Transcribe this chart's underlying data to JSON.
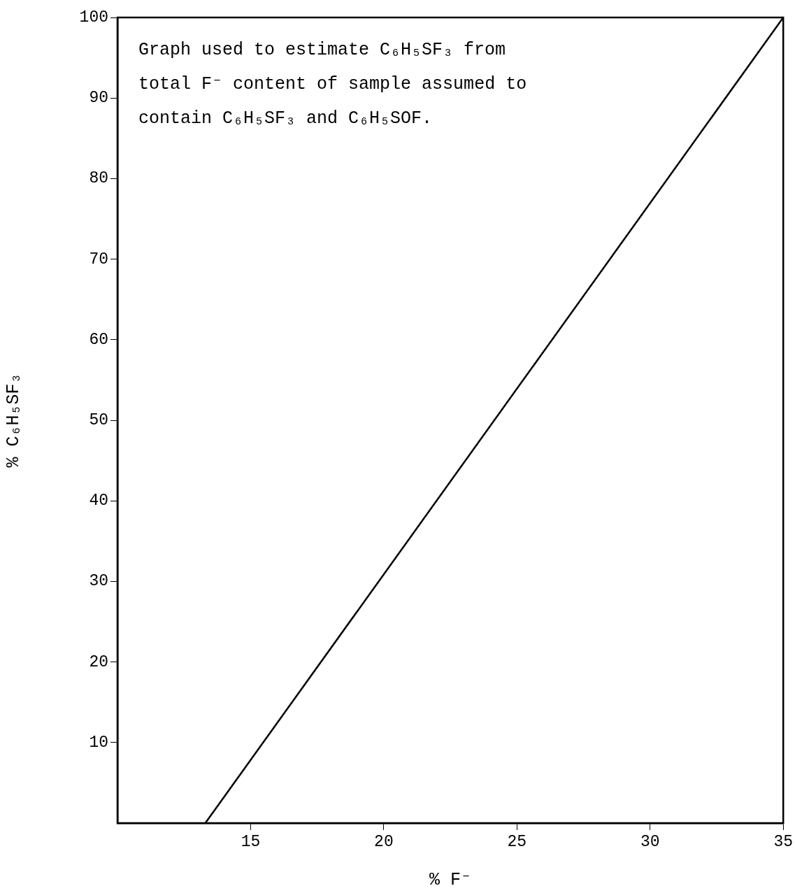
{
  "chart_data": {
    "type": "line",
    "xlabel": "% F⁻",
    "ylabel": "% C₆H₅SF₃",
    "annotations": [
      "Graph used to estimate C₆H₅SF₃ from total F⁻ content of sample assumed to contain C₆H₅SF₃ and C₆H₅SOF."
    ],
    "x": [
      13.3,
      35
    ],
    "series": [
      {
        "color": "#000000",
        "values": [
          0,
          100
        ]
      }
    ],
    "xlim": [
      10,
      35
    ],
    "xticks": [
      15,
      20,
      25,
      30,
      35
    ],
    "ylim": [
      0,
      100
    ],
    "yticks": [
      10,
      20,
      30,
      40,
      50,
      60,
      70,
      80,
      90,
      100
    ],
    "grid": false,
    "marker": "none",
    "line_style": "solid"
  }
}
